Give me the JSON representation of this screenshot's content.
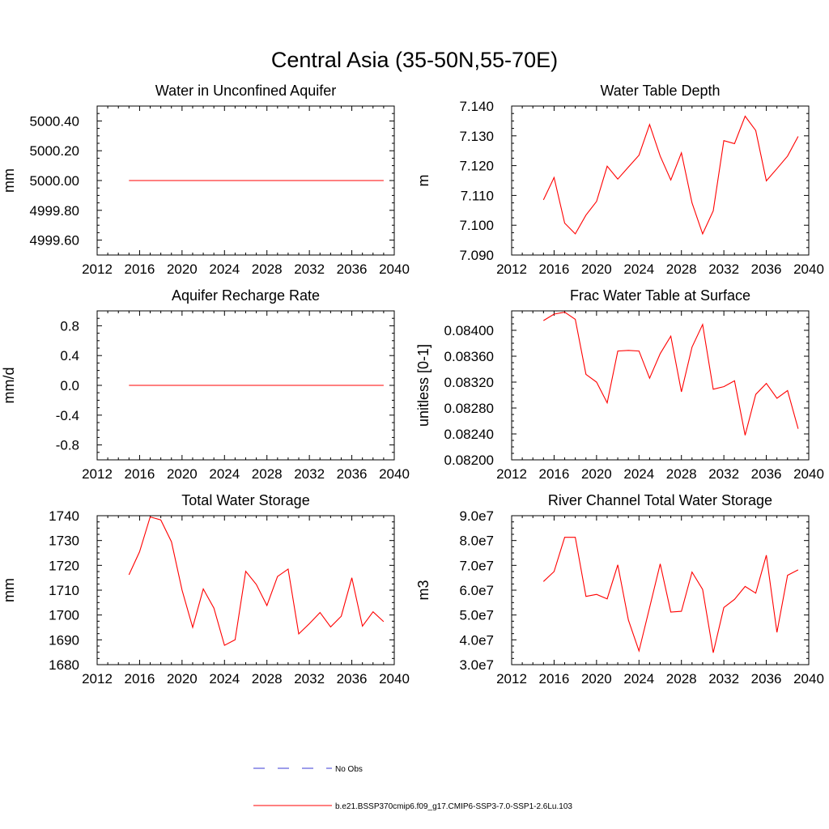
{
  "figure": {
    "title": "Central Asia (35-50N,55-70E)"
  },
  "legend": {
    "entries": [
      {
        "label": "No Obs",
        "color": "#3b3bd6",
        "dash": true
      },
      {
        "label": "b.e21.BSSP370cmip6.f09_g17.CMIP6-SSP3-7.0-SSP1-2.6Lu.103",
        "color": "#ff0000",
        "dash": false
      }
    ]
  },
  "chart_data": [
    {
      "type": "line",
      "title": "Water in Unconfined Aquifer",
      "ylabel": "mm",
      "xlim": [
        2012,
        2040
      ],
      "ylim": [
        4999.5,
        5000.5
      ],
      "xticks": [
        2012,
        2016,
        2020,
        2024,
        2028,
        2032,
        2036,
        2040
      ],
      "xtick_labels": [
        "2012",
        "2016",
        "2020",
        "2024",
        "2028",
        "2032",
        "2036",
        "2040"
      ],
      "yticks": [
        4999.6,
        4999.8,
        5000.0,
        5000.2,
        5000.4
      ],
      "ytick_labels": [
        "4999.60",
        "4999.80",
        "5000.00",
        "5000.20",
        "5000.40"
      ],
      "x": [
        2015,
        2016,
        2017,
        2018,
        2019,
        2020,
        2021,
        2022,
        2023,
        2024,
        2025,
        2026,
        2027,
        2028,
        2029,
        2030,
        2031,
        2032,
        2033,
        2034,
        2035,
        2036,
        2037,
        2038,
        2039
      ],
      "series": [
        {
          "color": "#ff0000",
          "values": [
            5000.0,
            5000.0,
            5000.0,
            5000.0,
            5000.0,
            5000.0,
            5000.0,
            5000.0,
            5000.0,
            5000.0,
            5000.0,
            5000.0,
            5000.0,
            5000.0,
            5000.0,
            5000.0,
            5000.0,
            5000.0,
            5000.0,
            5000.0,
            5000.0,
            5000.0,
            5000.0,
            5000.0,
            5000.0
          ]
        }
      ]
    },
    {
      "type": "line",
      "title": "Water Table Depth",
      "ylabel": "m",
      "xlim": [
        2012,
        2040
      ],
      "ylim": [
        7.09,
        7.14
      ],
      "xticks": [
        2012,
        2016,
        2020,
        2024,
        2028,
        2032,
        2036,
        2040
      ],
      "xtick_labels": [
        "2012",
        "2016",
        "2020",
        "2024",
        "2028",
        "2032",
        "2036",
        "2040"
      ],
      "yticks": [
        7.09,
        7.1,
        7.11,
        7.12,
        7.13,
        7.14
      ],
      "ytick_labels": [
        "7.090",
        "7.100",
        "7.110",
        "7.120",
        "7.130",
        "7.140"
      ],
      "x": [
        2015,
        2016,
        2017,
        2018,
        2019,
        2020,
        2021,
        2022,
        2023,
        2024,
        2025,
        2026,
        2027,
        2028,
        2029,
        2030,
        2031,
        2032,
        2033,
        2034,
        2035,
        2036,
        2037,
        2038,
        2039
      ],
      "series": [
        {
          "color": "#ff0000",
          "values": [
            7.1085,
            7.116,
            7.1007,
            7.0971,
            7.1034,
            7.108,
            7.1198,
            7.1155,
            7.1195,
            7.1235,
            7.1338,
            7.1232,
            7.1152,
            7.1243,
            7.1075,
            7.0971,
            7.1048,
            7.1284,
            7.1274,
            7.1366,
            7.1318,
            7.1149,
            7.119,
            7.1232,
            7.1298
          ]
        }
      ]
    },
    {
      "type": "line",
      "title": "Aquifer Recharge Rate",
      "ylabel": "mm/d",
      "xlim": [
        2012,
        2040
      ],
      "ylim": [
        -1.0,
        1.0
      ],
      "xticks": [
        2012,
        2016,
        2020,
        2024,
        2028,
        2032,
        2036,
        2040
      ],
      "xtick_labels": [
        "2012",
        "2016",
        "2020",
        "2024",
        "2028",
        "2032",
        "2036",
        "2040"
      ],
      "yticks": [
        -0.8,
        -0.4,
        0.0,
        0.4,
        0.8
      ],
      "ytick_labels": [
        "-0.8",
        "-0.4",
        "0.0",
        "0.4",
        "0.8"
      ],
      "x": [
        2015,
        2016,
        2017,
        2018,
        2019,
        2020,
        2021,
        2022,
        2023,
        2024,
        2025,
        2026,
        2027,
        2028,
        2029,
        2030,
        2031,
        2032,
        2033,
        2034,
        2035,
        2036,
        2037,
        2038,
        2039
      ],
      "series": [
        {
          "color": "#ff0000",
          "values": [
            0.0,
            0.0,
            0.0,
            0.0,
            0.0,
            0.0,
            0.0,
            0.0,
            0.0,
            0.0,
            0.0,
            0.0,
            0.0,
            0.0,
            0.0,
            0.0,
            0.0,
            0.0,
            0.0,
            0.0,
            0.0,
            0.0,
            0.0,
            0.0,
            0.0
          ]
        }
      ]
    },
    {
      "type": "line",
      "title": "Frac Water Table at Surface",
      "ylabel": "unitless [0-1]",
      "xlim": [
        2012,
        2040
      ],
      "ylim": [
        0.082,
        0.0843
      ],
      "xticks": [
        2012,
        2016,
        2020,
        2024,
        2028,
        2032,
        2036,
        2040
      ],
      "xtick_labels": [
        "2012",
        "2016",
        "2020",
        "2024",
        "2028",
        "2032",
        "2036",
        "2040"
      ],
      "yticks": [
        0.082,
        0.0824,
        0.0828,
        0.0832,
        0.0836,
        0.084
      ],
      "ytick_labels": [
        "0.08200",
        "0.08240",
        "0.08280",
        "0.08320",
        "0.08360",
        "0.08400"
      ],
      "x": [
        2015,
        2016,
        2017,
        2018,
        2019,
        2020,
        2021,
        2022,
        2023,
        2024,
        2025,
        2026,
        2027,
        2028,
        2029,
        2030,
        2031,
        2032,
        2033,
        2034,
        2035,
        2036,
        2037,
        2038,
        2039
      ],
      "series": [
        {
          "color": "#ff0000",
          "values": [
            0.08415,
            0.08425,
            0.08428,
            0.08417,
            0.08332,
            0.0832,
            0.08288,
            0.08368,
            0.08369,
            0.08368,
            0.08326,
            0.08364,
            0.08391,
            0.08305,
            0.08374,
            0.08409,
            0.08309,
            0.08313,
            0.08322,
            0.08238,
            0.08301,
            0.08318,
            0.08295,
            0.08307,
            0.08248
          ]
        }
      ]
    },
    {
      "type": "line",
      "title": "Total Water Storage",
      "ylabel": "mm",
      "xlim": [
        2012,
        2040
      ],
      "ylim": [
        1680,
        1740
      ],
      "xticks": [
        2012,
        2016,
        2020,
        2024,
        2028,
        2032,
        2036,
        2040
      ],
      "xtick_labels": [
        "2012",
        "2016",
        "2020",
        "2024",
        "2028",
        "2032",
        "2036",
        "2040"
      ],
      "yticks": [
        1680,
        1690,
        1700,
        1710,
        1720,
        1730,
        1740
      ],
      "ytick_labels": [
        "1680",
        "1690",
        "1700",
        "1710",
        "1720",
        "1730",
        "1740"
      ],
      "x": [
        2015,
        2016,
        2017,
        2018,
        2019,
        2020,
        2021,
        2022,
        2023,
        2024,
        2025,
        2026,
        2027,
        2028,
        2029,
        2030,
        2031,
        2032,
        2033,
        2034,
        2035,
        2036,
        2037,
        2038,
        2039
      ],
      "series": [
        {
          "color": "#ff0000",
          "values": [
            1716.2,
            1725.5,
            1739.5,
            1738.3,
            1729.5,
            1710.0,
            1695.0,
            1710.5,
            1702.8,
            1687.8,
            1690.0,
            1717.6,
            1712.3,
            1703.8,
            1715.5,
            1718.5,
            1692.4,
            1696.5,
            1701.0,
            1695.2,
            1699.5,
            1715.0,
            1695.5,
            1701.3,
            1697.3
          ]
        }
      ]
    },
    {
      "type": "line",
      "title": "River Channel Total Water Storage",
      "ylabel": "m3",
      "xlim": [
        2012,
        2040
      ],
      "ylim": [
        30000000,
        90000000
      ],
      "xticks": [
        2012,
        2016,
        2020,
        2024,
        2028,
        2032,
        2036,
        2040
      ],
      "xtick_labels": [
        "2012",
        "2016",
        "2020",
        "2024",
        "2028",
        "2032",
        "2036",
        "2040"
      ],
      "yticks": [
        30000000,
        40000000,
        50000000,
        60000000,
        70000000,
        80000000,
        90000000
      ],
      "ytick_labels": [
        "3.0e7",
        "4.0e7",
        "5.0e7",
        "6.0e7",
        "7.0e7",
        "8.0e7",
        "9.0e7"
      ],
      "x": [
        2015,
        2016,
        2017,
        2018,
        2019,
        2020,
        2021,
        2022,
        2023,
        2024,
        2025,
        2026,
        2027,
        2028,
        2029,
        2030,
        2031,
        2032,
        2033,
        2034,
        2035,
        2036,
        2037,
        2038,
        2039
      ],
      "series": [
        {
          "color": "#ff0000",
          "values": [
            63500000,
            67500000,
            81300000,
            81300000,
            57500000,
            58300000,
            56500000,
            70200000,
            48000000,
            35500000,
            53000000,
            70600000,
            51200000,
            51500000,
            67300000,
            60300000,
            34800000,
            53000000,
            56300000,
            61500000,
            58800000,
            74100000,
            43000000,
            66000000,
            68200000
          ]
        }
      ]
    }
  ]
}
